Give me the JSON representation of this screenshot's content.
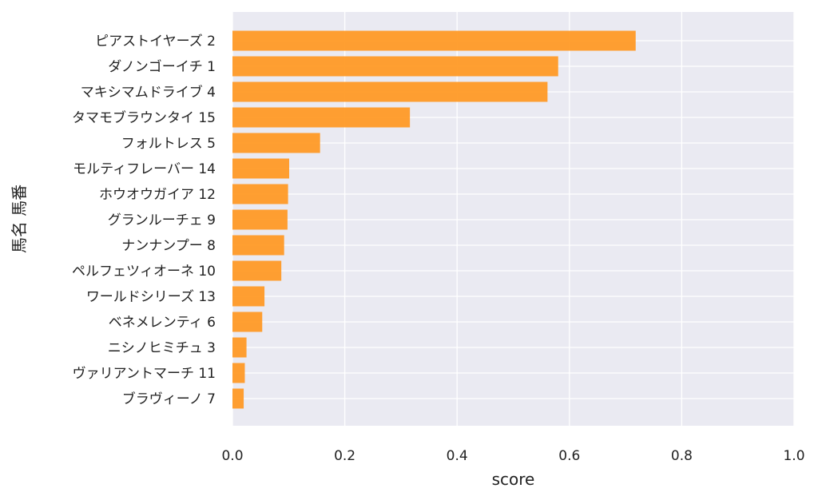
{
  "chart_data": {
    "type": "bar",
    "orientation": "horizontal",
    "categories": [
      "ピアストイヤーズ 2",
      "ダノンゴーイチ 1",
      "マキシマムドライブ 4",
      "タマモブラウンタイ 15",
      "フォルトレス 5",
      "モルティフレーバー 14",
      "ホウオウガイア 12",
      "グランルーチェ 9",
      "ナンナンプー 8",
      "ペルフェツィオーネ 10",
      "ワールドシリーズ 13",
      "ベネメレンティ 6",
      "ニシノヒミチュ 3",
      "ヴァリアントマーチ 11",
      "ブラヴィーノ 7"
    ],
    "values": [
      0.718,
      0.58,
      0.561,
      0.316,
      0.156,
      0.101,
      0.099,
      0.098,
      0.092,
      0.087,
      0.057,
      0.053,
      0.025,
      0.022,
      0.02
    ],
    "xlabel": "score",
    "ylabel": "馬名 馬番",
    "xlim": [
      0,
      1
    ],
    "xticks": [
      "0.0",
      "0.2",
      "0.4",
      "0.6",
      "0.8",
      "1.0"
    ],
    "grid": true,
    "bar_color": "#FF9A26",
    "background_color": "#EAEAF2",
    "grid_color": "#FFFFFF"
  }
}
